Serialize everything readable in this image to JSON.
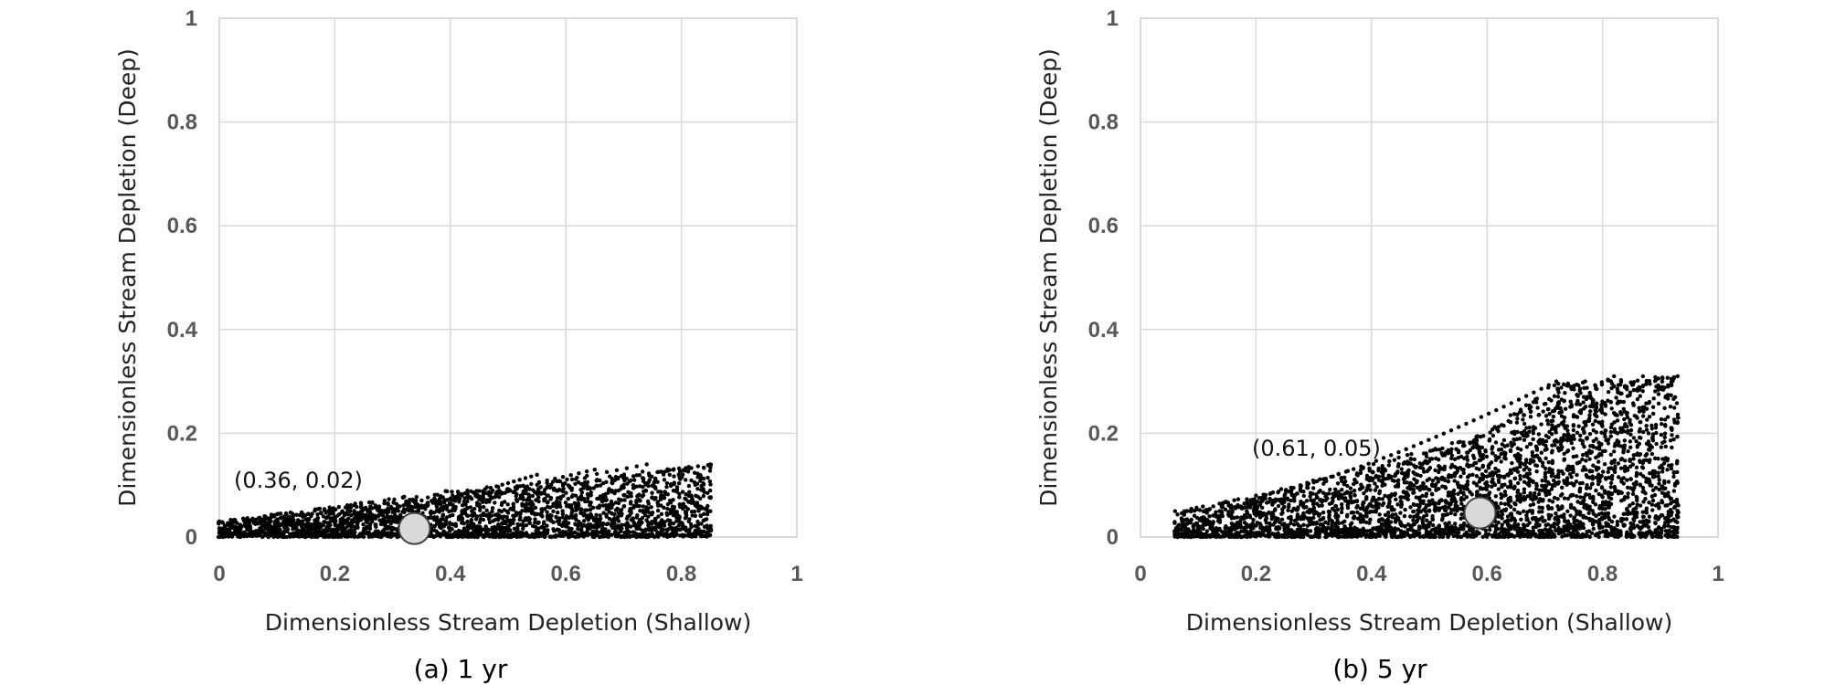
{
  "chart_data": [
    {
      "type": "scatter",
      "caption": "(a) 1 yr",
      "xlabel": "Dimensionless Stream Depletion (Shallow)",
      "ylabel": "Dimensionless Stream Depletion (Deep)",
      "xlim": [
        0,
        1
      ],
      "ylim": [
        0,
        1
      ],
      "xticks": [
        "0",
        "0.2",
        "0.4",
        "0.6",
        "0.8",
        "1"
      ],
      "yticks": [
        "0",
        "0.2",
        "0.4",
        "0.6",
        "0.8",
        "1"
      ],
      "grid": true,
      "highlight": {
        "x": 0.36,
        "y": 0.02,
        "label": "(0.36, 0.02)"
      },
      "cloud": {
        "x_min": 0.0,
        "x_max": 0.85,
        "y_floor": 0.0,
        "envelope": [
          [
            0.0,
            0.03
          ],
          [
            0.2,
            0.06
          ],
          [
            0.4,
            0.09
          ],
          [
            0.6,
            0.11
          ],
          [
            0.85,
            0.14
          ]
        ],
        "upper_curves": [
          [
            [
              0.0,
              0.03
            ],
            [
              0.85,
              0.14
            ]
          ],
          [
            [
              0.05,
              0.025
            ],
            [
              0.74,
              0.14
            ]
          ],
          [
            [
              0.1,
              0.02
            ],
            [
              0.65,
              0.13
            ]
          ],
          [
            [
              0.15,
              0.02
            ],
            [
              0.55,
              0.12
            ]
          ]
        ]
      }
    },
    {
      "type": "scatter",
      "caption": "(b) 5 yr",
      "xlabel": "Dimensionless Stream Depletion (Shallow)",
      "ylabel": "Dimensionless Stream Depletion (Deep)",
      "xlim": [
        0,
        1
      ],
      "ylim": [
        0,
        1
      ],
      "xticks": [
        "0",
        "0.2",
        "0.4",
        "0.6",
        "0.8",
        "1"
      ],
      "yticks": [
        "0",
        "0.2",
        "0.4",
        "0.6",
        "0.8",
        "1"
      ],
      "grid": true,
      "highlight": {
        "x": 0.61,
        "y": 0.05,
        "label": "(0.61, 0.05)"
      },
      "cloud": {
        "x_min": 0.06,
        "x_max": 0.93,
        "y_floor": 0.0,
        "envelope": [
          [
            0.06,
            0.05
          ],
          [
            0.2,
            0.08
          ],
          [
            0.4,
            0.14
          ],
          [
            0.6,
            0.2
          ],
          [
            0.72,
            0.3
          ],
          [
            0.93,
            0.31
          ]
        ],
        "upper_curves": [
          [
            [
              0.2,
              0.08
            ],
            [
              0.72,
              0.3
            ]
          ],
          [
            [
              0.3,
              0.07
            ],
            [
              0.77,
              0.3
            ]
          ],
          [
            [
              0.4,
              0.06
            ],
            [
              0.82,
              0.31
            ]
          ],
          [
            [
              0.5,
              0.05
            ],
            [
              0.87,
              0.31
            ]
          ],
          [
            [
              0.6,
              0.04
            ],
            [
              0.93,
              0.31
            ]
          ]
        ]
      }
    }
  ]
}
